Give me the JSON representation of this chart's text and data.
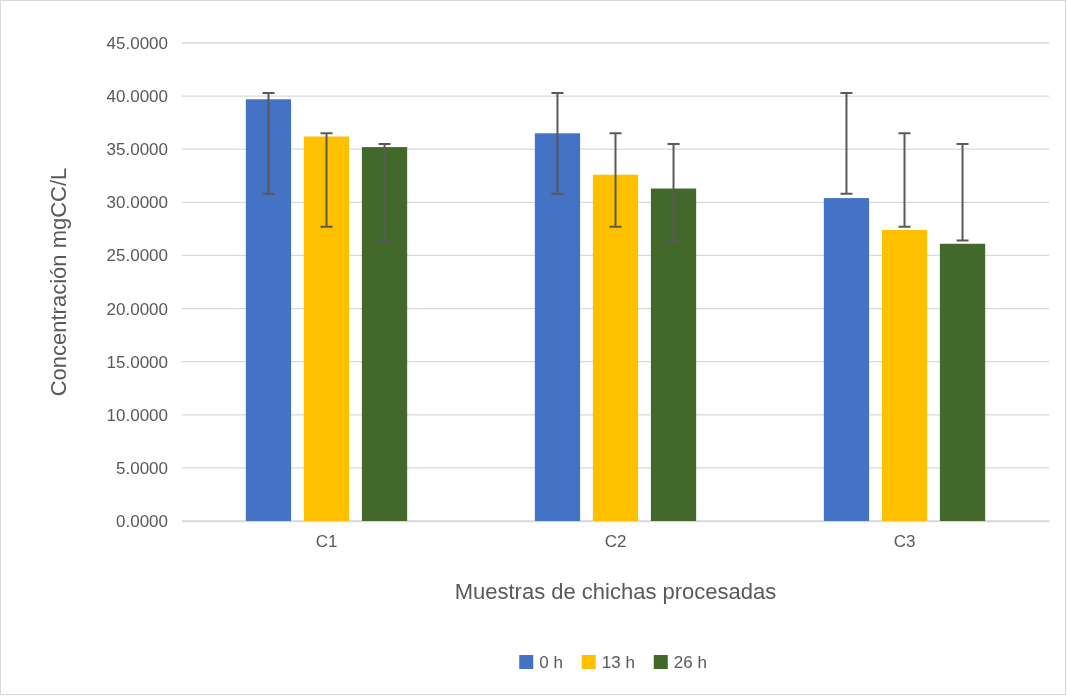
{
  "chart_data": {
    "type": "bar",
    "xlabel": "Muestras de chichas procesadas",
    "ylabel": "Concentración mgCC/L",
    "categories": [
      "C1",
      "C2",
      "C3"
    ],
    "series": [
      {
        "name": "0 h",
        "color": "#4472c4",
        "values": [
          39.7,
          36.5,
          30.4
        ],
        "errors": [
          [
            30.8,
            40.3
          ],
          [
            30.8,
            40.3
          ],
          [
            30.8,
            40.3
          ]
        ]
      },
      {
        "name": "13 h",
        "color": "#ffc000",
        "values": [
          36.2,
          32.6,
          27.4
        ],
        "errors": [
          [
            27.7,
            36.5
          ],
          [
            27.7,
            36.5
          ],
          [
            27.7,
            36.5
          ]
        ]
      },
      {
        "name": "26 h",
        "color": "#43682b",
        "values": [
          35.2,
          31.3,
          26.1
        ],
        "errors": [
          [
            26.4,
            35.5
          ],
          [
            26.4,
            35.5
          ],
          [
            26.4,
            35.5
          ]
        ]
      }
    ],
    "ylim": [
      0,
      45
    ],
    "yticks": [
      {
        "value": 0,
        "label": "0.0000"
      },
      {
        "value": 5,
        "label": "5.0000"
      },
      {
        "value": 10,
        "label": "10.0000"
      },
      {
        "value": 15,
        "label": "15.0000"
      },
      {
        "value": 20,
        "label": "20.0000"
      },
      {
        "value": 25,
        "label": "25.0000"
      },
      {
        "value": 30,
        "label": "30.0000"
      },
      {
        "value": 35,
        "label": "35.0000"
      },
      {
        "value": 40,
        "label": "40.0000"
      },
      {
        "value": 45,
        "label": "45.0000"
      }
    ],
    "grid": "y",
    "legend": "bottom"
  }
}
